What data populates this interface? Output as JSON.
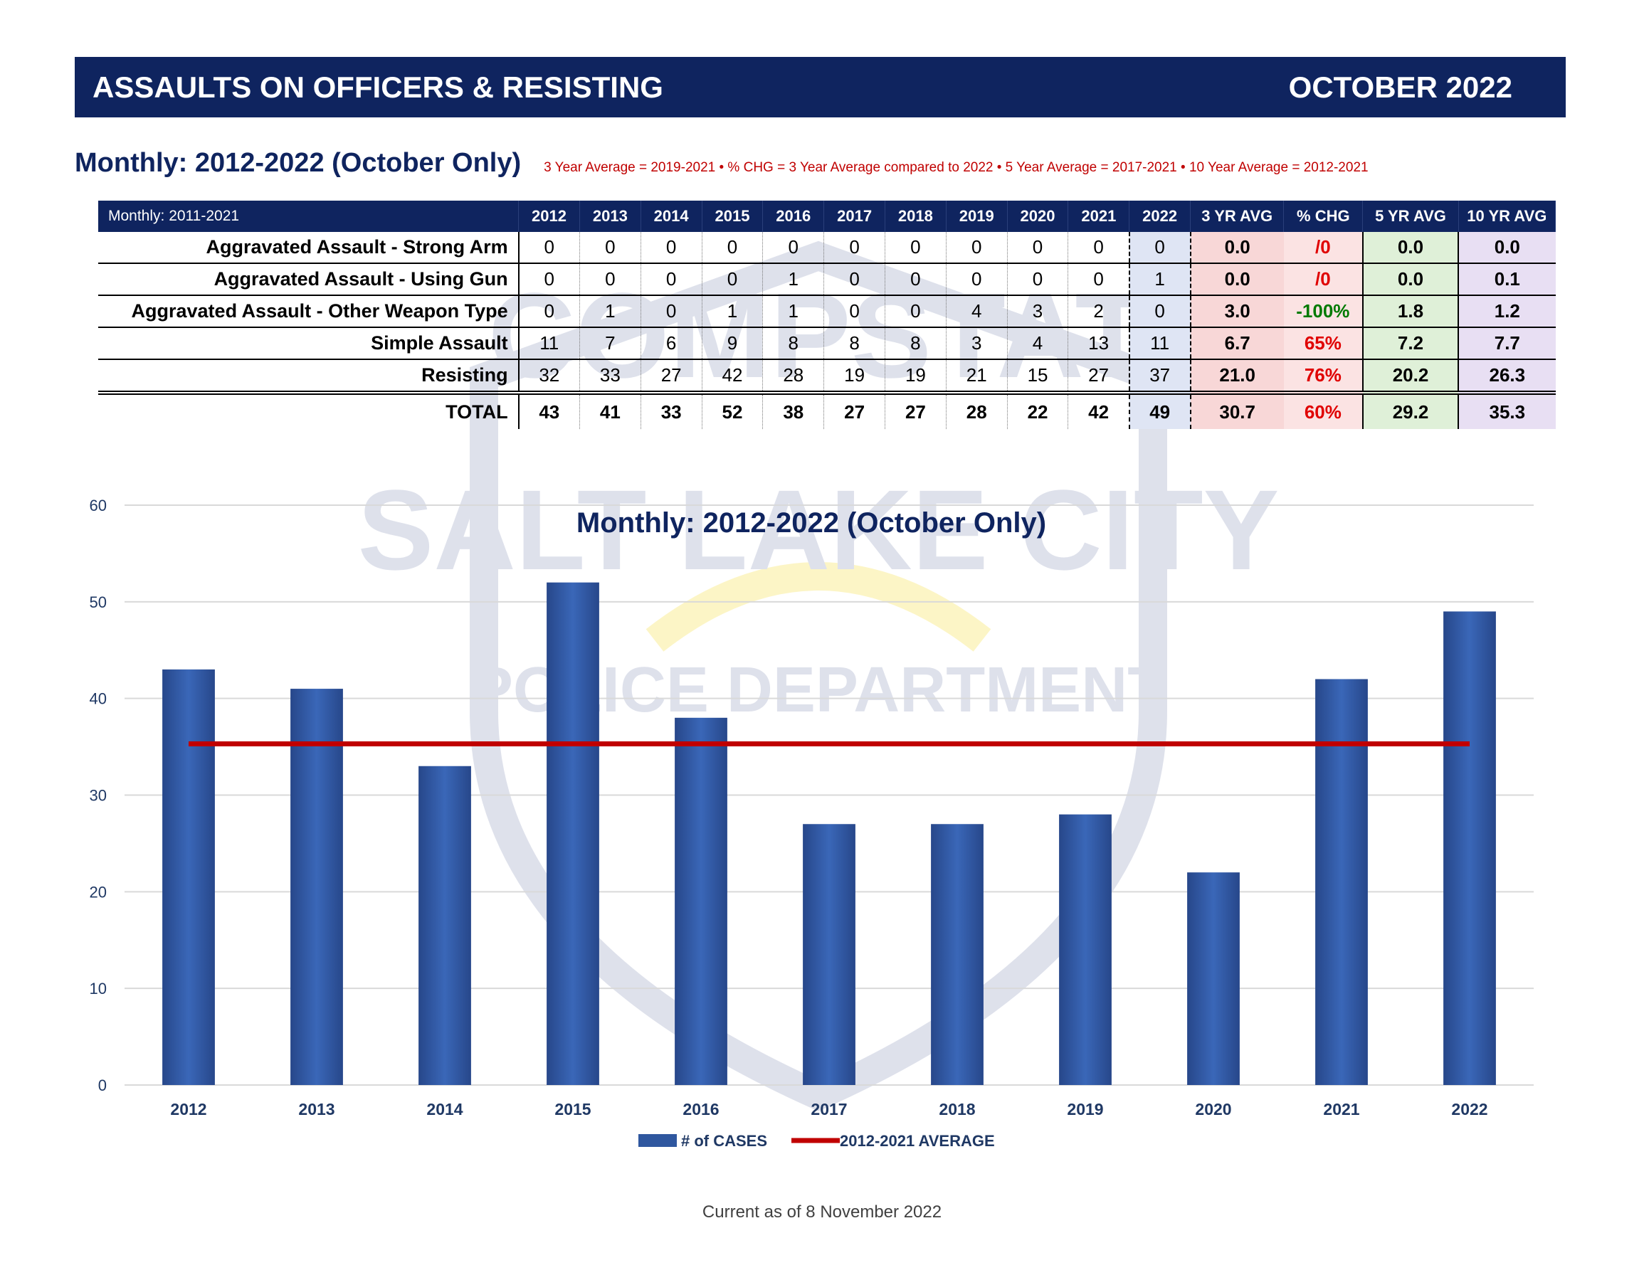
{
  "header": {
    "title": "ASSAULTS ON OFFICERS & RESISTING",
    "period": "OCTOBER  2022"
  },
  "subheader": {
    "title": "Monthly:  2012-2022 (October Only)",
    "note": "3 Year Average = 2019-2021 • % CHG = 3 Year Average compared to 2022 • 5 Year Average = 2017-2021 • 10 Year Average = 2012-2021"
  },
  "table": {
    "corner": "Monthly: 2011-2021",
    "years": [
      "2012",
      "2013",
      "2014",
      "2015",
      "2016",
      "2017",
      "2018",
      "2019",
      "2020",
      "2021",
      "2022"
    ],
    "stat_headers": [
      "3 YR AVG",
      "% CHG",
      "5 YR AVG",
      "10 YR AVG"
    ],
    "rows": [
      {
        "label": "Aggravated Assault - Strong Arm",
        "values": [
          "0",
          "0",
          "0",
          "0",
          "0",
          "0",
          "0",
          "0",
          "0",
          "0",
          "0"
        ],
        "avg3": "0.0",
        "chg": "/0",
        "avg5": "0.0",
        "avg10": "0.0"
      },
      {
        "label": "Aggravated Assault - Using Gun",
        "values": [
          "0",
          "0",
          "0",
          "0",
          "1",
          "0",
          "0",
          "0",
          "0",
          "0",
          "1"
        ],
        "avg3": "0.0",
        "chg": "/0",
        "avg5": "0.0",
        "avg10": "0.1"
      },
      {
        "label": "Aggravated Assault - Other Weapon Type",
        "values": [
          "0",
          "1",
          "0",
          "1",
          "1",
          "0",
          "0",
          "4",
          "3",
          "2",
          "0"
        ],
        "avg3": "3.0",
        "chg": "-100%",
        "avg5": "1.8",
        "avg10": "1.2"
      },
      {
        "label": "Simple Assault",
        "values": [
          "11",
          "7",
          "6",
          "9",
          "8",
          "8",
          "8",
          "3",
          "4",
          "13",
          "11"
        ],
        "avg3": "6.7",
        "chg": "65%",
        "avg5": "7.2",
        "avg10": "7.7"
      },
      {
        "label": "Resisting",
        "values": [
          "32",
          "33",
          "27",
          "42",
          "28",
          "19",
          "19",
          "21",
          "15",
          "27",
          "37"
        ],
        "avg3": "21.0",
        "chg": "76%",
        "avg5": "20.2",
        "avg10": "26.3"
      }
    ],
    "total": {
      "label": "TOTAL",
      "values": [
        "43",
        "41",
        "33",
        "52",
        "38",
        "27",
        "27",
        "28",
        "22",
        "42",
        "49"
      ],
      "avg3": "30.7",
      "chg": "60%",
      "avg5": "29.2",
      "avg10": "35.3"
    }
  },
  "chart_data": {
    "type": "bar",
    "title": "Monthly: 2012-2022 (October Only)",
    "categories": [
      "2012",
      "2013",
      "2014",
      "2015",
      "2016",
      "2017",
      "2018",
      "2019",
      "2020",
      "2021",
      "2022"
    ],
    "series": [
      {
        "name": "# of CASES",
        "values": [
          43,
          41,
          33,
          52,
          38,
          27,
          27,
          28,
          22,
          42,
          49
        ],
        "color": "#2f579f"
      },
      {
        "name": "2012-2021 AVERAGE",
        "type": "line",
        "values": [
          35.3,
          35.3,
          35.3,
          35.3,
          35.3,
          35.3,
          35.3,
          35.3,
          35.3,
          35.3,
          35.3
        ],
        "color": "#c00000"
      }
    ],
    "ylim": [
      0,
      60
    ],
    "yticks": [
      0,
      10,
      20,
      30,
      40,
      50,
      60
    ],
    "grid": true,
    "legend": "bottom"
  },
  "watermark": {
    "top_text": "COMPSTAT",
    "middle_text": "SALT LAKE CITY",
    "bottom_text": "POLICE DEPARTMENT"
  },
  "footer": "Current as of 8 November 2022"
}
